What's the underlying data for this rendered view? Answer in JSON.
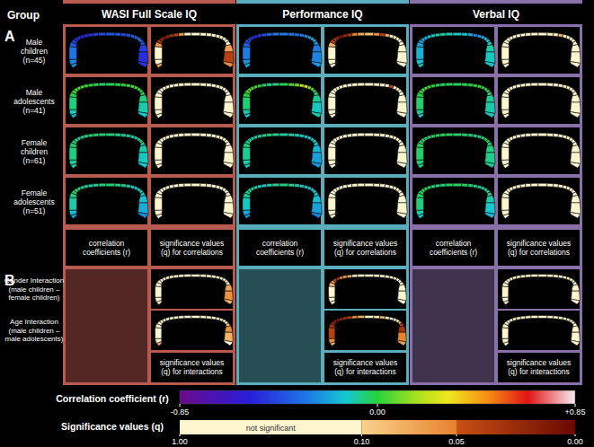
{
  "chart_data": {
    "type": "heatmap",
    "group_header": "Group",
    "section_labels": [
      "A",
      "B"
    ],
    "columns": [
      {
        "title": "WASI Full Scale IQ",
        "color": "#b85a50"
      },
      {
        "title": "Performance IQ",
        "color": "#5aaebc"
      },
      {
        "title": "Verbal IQ",
        "color": "#8a70a8"
      }
    ],
    "r_caption": "correlation coefficients (r)",
    "q_caption": "significance values (q) for correlations",
    "qi_caption": "significance values (q) for interactions",
    "groups": [
      {
        "label": "Male children (n=45)",
        "r": [
          [
            -0.25,
            -0.28,
            -0.32,
            -0.38,
            -0.44,
            -0.5,
            -0.52,
            -0.54,
            -0.52,
            -0.5,
            -0.46,
            -0.42,
            -0.4,
            -0.42,
            -0.44,
            -0.4,
            -0.38,
            -0.36,
            -0.34,
            -0.38,
            -0.42,
            -0.46,
            -0.5,
            -0.48
          ],
          [
            -0.2,
            -0.25,
            -0.3,
            -0.36,
            -0.42,
            -0.46,
            -0.5,
            -0.52,
            -0.48,
            -0.42,
            -0.36,
            -0.32,
            -0.3,
            -0.32,
            -0.34,
            -0.3,
            -0.26,
            -0.22,
            -0.2,
            -0.22,
            -0.26,
            -0.3,
            -0.28,
            -0.24
          ],
          [
            -0.12,
            -0.15,
            -0.18,
            -0.2,
            -0.22,
            -0.2,
            -0.18,
            -0.15,
            -0.12,
            -0.1,
            -0.08,
            -0.1,
            -0.12,
            -0.15,
            -0.2,
            -0.3,
            -0.26,
            -0.2,
            -0.16,
            -0.14,
            -0.12,
            -0.1,
            -0.12,
            -0.14
          ]
        ],
        "q": [
          [
            0.07,
            0.3,
            0.2,
            0.06,
            0.03,
            0.02,
            0.01,
            0.02,
            0.03,
            0.04,
            0.06,
            0.4,
            0.5,
            0.4,
            0.35,
            0.3,
            0.45,
            0.6,
            0.5,
            0.4,
            0.2,
            0.07,
            0.04,
            0.06
          ],
          [
            0.4,
            0.3,
            0.15,
            0.08,
            0.04,
            0.03,
            0.02,
            0.01,
            0.02,
            0.03,
            0.05,
            0.07,
            0.09,
            0.06,
            0.04,
            0.08,
            0.3,
            0.5,
            0.6,
            0.5,
            0.4,
            0.3,
            0.4,
            0.5
          ],
          [
            0.7,
            0.6,
            0.5,
            0.5,
            0.4,
            0.5,
            0.6,
            0.6,
            0.7,
            0.8,
            0.8,
            0.7,
            0.6,
            0.5,
            0.3,
            0.08,
            0.2,
            0.4,
            0.5,
            0.6,
            0.6,
            0.7,
            0.6,
            0.6
          ]
        ]
      },
      {
        "label": "Male adolescents (n=41)",
        "r": [
          [
            -0.18,
            -0.12,
            -0.06,
            -0.02,
            0.02,
            0.04,
            0.05,
            0.04,
            0.02,
            0.0,
            -0.02,
            -0.04,
            -0.03,
            -0.02,
            0.0,
            0.03,
            0.05,
            0.04,
            0.02,
            0.0,
            -0.03,
            -0.06,
            -0.1,
            -0.14
          ],
          [
            -0.15,
            -0.1,
            -0.05,
            0.0,
            0.04,
            0.06,
            0.05,
            0.03,
            0.0,
            -0.04,
            -0.08,
            -0.06,
            -0.02,
            0.04,
            0.1,
            0.2,
            0.32,
            0.12,
            0.05,
            0.0,
            -0.04,
            -0.08,
            -0.12,
            -0.1
          ],
          [
            -0.12,
            -0.08,
            -0.04,
            0.0,
            0.02,
            0.03,
            0.03,
            0.02,
            0.0,
            -0.02,
            -0.03,
            -0.04,
            -0.03,
            -0.02,
            -0.01,
            0.0,
            0.01,
            0.0,
            -0.02,
            -0.04,
            -0.06,
            -0.08,
            -0.1,
            -0.12
          ]
        ],
        "q": [
          [
            0.6,
            0.7,
            0.8,
            0.9,
            0.9,
            0.8,
            0.8,
            0.8,
            0.9,
            0.95,
            0.9,
            0.8,
            0.8,
            0.9,
            0.95,
            0.9,
            0.8,
            0.8,
            0.9,
            0.95,
            0.9,
            0.8,
            0.6,
            0.5
          ],
          [
            0.6,
            0.7,
            0.8,
            0.9,
            0.8,
            0.7,
            0.8,
            0.9,
            0.95,
            0.8,
            0.6,
            0.7,
            0.9,
            0.8,
            0.5,
            0.2,
            0.04,
            0.4,
            0.7,
            0.9,
            0.8,
            0.7,
            0.5,
            0.6
          ],
          [
            0.7,
            0.8,
            0.9,
            0.95,
            0.9,
            0.9,
            0.9,
            0.9,
            0.95,
            0.9,
            0.9,
            0.85,
            0.9,
            0.9,
            0.95,
            0.95,
            0.9,
            0.95,
            0.9,
            0.85,
            0.8,
            0.8,
            0.7,
            0.7
          ]
        ]
      },
      {
        "label": "Female children (n=61)",
        "r": [
          [
            -0.1,
            -0.08,
            -0.06,
            -0.04,
            -0.05,
            -0.06,
            -0.08,
            -0.07,
            -0.06,
            -0.05,
            -0.04,
            -0.05,
            -0.06,
            -0.07,
            -0.08,
            -0.09,
            -0.1,
            -0.09,
            -0.08,
            -0.07,
            -0.08,
            -0.1,
            -0.12,
            -0.14
          ],
          [
            -0.12,
            -0.1,
            -0.08,
            -0.06,
            -0.07,
            -0.08,
            -0.1,
            -0.09,
            -0.08,
            -0.07,
            -0.06,
            -0.07,
            -0.08,
            -0.09,
            -0.1,
            -0.12,
            -0.14,
            -0.13,
            -0.12,
            -0.12,
            -0.14,
            -0.18,
            -0.22,
            -0.24
          ],
          [
            -0.06,
            -0.05,
            -0.04,
            -0.03,
            -0.03,
            -0.04,
            -0.05,
            -0.05,
            -0.04,
            -0.03,
            -0.02,
            -0.03,
            -0.04,
            -0.05,
            -0.05,
            -0.06,
            -0.06,
            -0.05,
            -0.04,
            -0.04,
            -0.05,
            -0.06,
            -0.07,
            -0.08
          ]
        ],
        "q": [
          [
            0.6,
            0.7,
            0.8,
            0.8,
            0.8,
            0.7,
            0.6,
            0.7,
            0.7,
            0.8,
            0.8,
            0.8,
            0.7,
            0.7,
            0.6,
            0.6,
            0.5,
            0.6,
            0.6,
            0.7,
            0.6,
            0.5,
            0.5,
            0.4
          ],
          [
            0.5,
            0.6,
            0.7,
            0.8,
            0.7,
            0.7,
            0.6,
            0.6,
            0.7,
            0.7,
            0.8,
            0.7,
            0.7,
            0.6,
            0.6,
            0.5,
            0.4,
            0.4,
            0.5,
            0.5,
            0.4,
            0.3,
            0.2,
            0.2
          ],
          [
            0.8,
            0.85,
            0.9,
            0.9,
            0.9,
            0.9,
            0.85,
            0.85,
            0.9,
            0.9,
            0.95,
            0.9,
            0.9,
            0.85,
            0.85,
            0.8,
            0.8,
            0.85,
            0.9,
            0.9,
            0.85,
            0.8,
            0.8,
            0.75
          ]
        ]
      },
      {
        "label": "Female adolescents (n=51)",
        "r": [
          [
            -0.22,
            -0.16,
            -0.1,
            -0.06,
            -0.04,
            -0.05,
            -0.06,
            -0.07,
            -0.08,
            -0.09,
            -0.08,
            -0.06,
            -0.05,
            -0.06,
            -0.08,
            -0.1,
            -0.12,
            -0.14,
            -0.12,
            -0.1,
            -0.12,
            -0.15,
            -0.2,
            -0.26
          ],
          [
            -0.26,
            -0.2,
            -0.12,
            -0.08,
            -0.06,
            -0.07,
            -0.08,
            -0.1,
            -0.11,
            -0.12,
            -0.1,
            -0.08,
            -0.06,
            -0.07,
            -0.09,
            -0.11,
            -0.13,
            -0.15,
            -0.14,
            -0.12,
            -0.14,
            -0.16,
            -0.22,
            -0.28
          ],
          [
            -0.14,
            -0.1,
            -0.06,
            -0.03,
            -0.02,
            -0.03,
            -0.04,
            -0.04,
            -0.05,
            -0.06,
            -0.05,
            -0.04,
            -0.03,
            -0.04,
            -0.05,
            -0.06,
            -0.08,
            -0.09,
            -0.08,
            -0.07,
            -0.08,
            -0.1,
            -0.13,
            -0.16
          ]
        ],
        "q": [
          [
            0.4,
            0.5,
            0.7,
            0.8,
            0.9,
            0.85,
            0.8,
            0.8,
            0.75,
            0.7,
            0.75,
            0.8,
            0.85,
            0.8,
            0.75,
            0.7,
            0.6,
            0.5,
            0.6,
            0.7,
            0.6,
            0.5,
            0.4,
            0.3
          ],
          [
            0.3,
            0.4,
            0.6,
            0.75,
            0.8,
            0.8,
            0.75,
            0.7,
            0.7,
            0.65,
            0.7,
            0.75,
            0.8,
            0.75,
            0.7,
            0.65,
            0.6,
            0.5,
            0.55,
            0.6,
            0.55,
            0.5,
            0.35,
            0.25
          ],
          [
            0.6,
            0.7,
            0.8,
            0.9,
            0.95,
            0.9,
            0.9,
            0.9,
            0.85,
            0.85,
            0.9,
            0.9,
            0.95,
            0.9,
            0.85,
            0.85,
            0.8,
            0.75,
            0.8,
            0.8,
            0.75,
            0.7,
            0.6,
            0.5
          ]
        ]
      }
    ],
    "interactions": [
      {
        "label": "Gender Interaction (male children – female children)",
        "q": [
          [
            0.3,
            0.5,
            0.6,
            0.7,
            0.6,
            0.5,
            0.4,
            0.5,
            0.6,
            0.7,
            0.6,
            0.5,
            0.6,
            0.7,
            0.8,
            0.7,
            0.6,
            0.5,
            0.4,
            0.3,
            0.2,
            0.07,
            0.06,
            0.08
          ],
          [
            0.2,
            0.3,
            0.2,
            0.09,
            0.06,
            0.04,
            0.03,
            0.05,
            0.07,
            0.08,
            0.3,
            0.5,
            0.6,
            0.5,
            0.4,
            0.3,
            0.4,
            0.5,
            0.6,
            0.5,
            0.4,
            0.3,
            0.2,
            0.3
          ],
          [
            0.5,
            0.6,
            0.7,
            0.8,
            0.8,
            0.7,
            0.7,
            0.8,
            0.8,
            0.9,
            0.9,
            0.8,
            0.8,
            0.7,
            0.6,
            0.4,
            0.5,
            0.6,
            0.7,
            0.7,
            0.6,
            0.5,
            0.5,
            0.4
          ]
        ]
      },
      {
        "label": "Age Interaction (male children – male adolescents)",
        "q": [
          [
            0.07,
            0.2,
            0.4,
            0.5,
            0.3,
            0.2,
            0.3,
            0.4,
            0.5,
            0.6,
            0.5,
            0.6,
            0.7,
            0.6,
            0.5,
            0.6,
            0.7,
            0.6,
            0.5,
            0.3,
            0.09,
            0.06,
            0.08,
            0.2
          ],
          [
            0.08,
            0.06,
            0.04,
            0.03,
            0.02,
            0.01,
            0.01,
            0.02,
            0.03,
            0.04,
            0.06,
            0.08,
            0.3,
            0.2,
            0.09,
            0.3,
            0.4,
            0.3,
            0.2,
            0.07,
            0.04,
            0.03,
            0.05,
            0.07
          ],
          [
            0.5,
            0.6,
            0.7,
            0.8,
            0.8,
            0.8,
            0.7,
            0.7,
            0.8,
            0.8,
            0.9,
            0.8,
            0.7,
            0.6,
            0.5,
            0.4,
            0.5,
            0.6,
            0.6,
            0.5,
            0.4,
            0.3,
            0.3,
            0.4
          ]
        ]
      }
    ],
    "r_colorbar": {
      "title": "Correlation coefficient (r)",
      "range": [
        -0.85,
        0.85
      ],
      "ticks": [
        {
          "value": -0.85,
          "label": "-0.85"
        },
        {
          "value": 0,
          "label": "0.00"
        },
        {
          "value": 0.85,
          "label": "+0.85"
        }
      ]
    },
    "q_colorbar": {
      "title": "Significance values (q)",
      "range": [
        1,
        0
      ],
      "annotation": "not significant",
      "ticks": [
        {
          "value": 1,
          "label": "1.00"
        },
        {
          "value": 0.1,
          "label": "0.10"
        },
        {
          "value": 0.05,
          "label": "0.05"
        },
        {
          "value": 0,
          "label": "0.00"
        }
      ]
    }
  }
}
